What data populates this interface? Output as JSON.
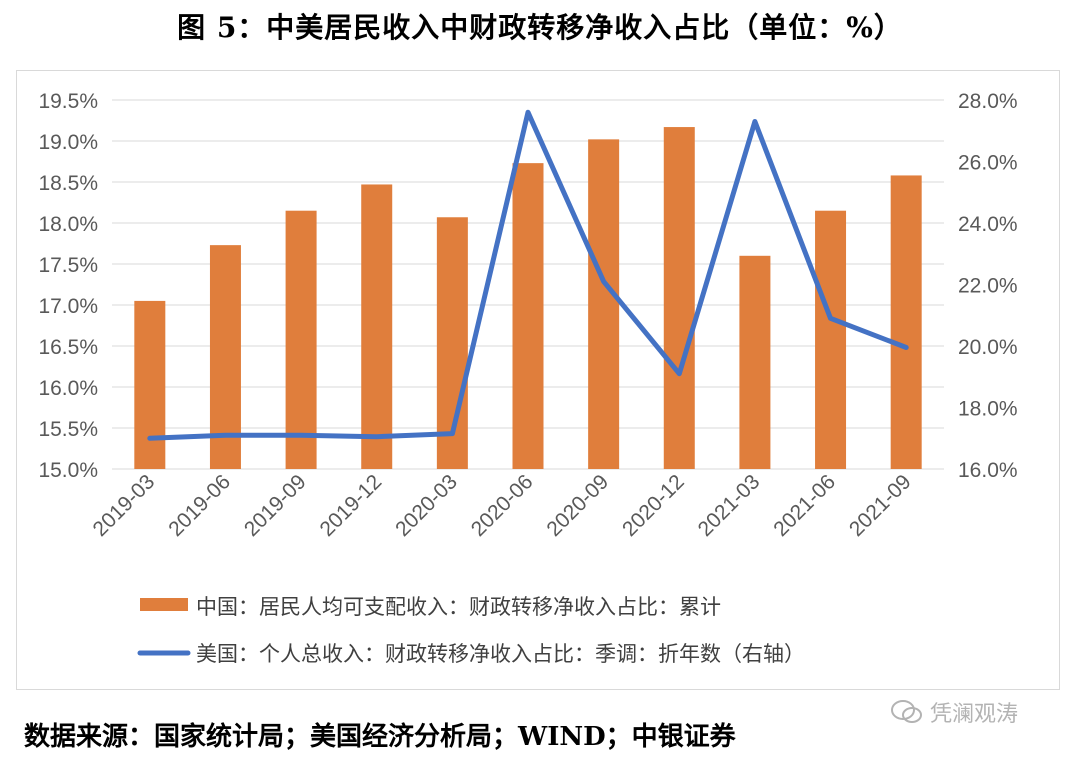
{
  "title": "图 5：中美居民收入中财政转移净收入占比（单位：%）",
  "source": "数据来源：国家统计局；美国经济分析局；WIND；中银证券",
  "watermark": "凭澜观涛",
  "colors": {
    "bar": "#E07E3C",
    "line": "#4472C4",
    "grid": "#d9d9d9",
    "axis_text": "#595959"
  },
  "chart_data": {
    "type": "bar+line",
    "categories": [
      "2019-03",
      "2019-06",
      "2019-09",
      "2019-12",
      "2020-03",
      "2020-06",
      "2020-09",
      "2020-12",
      "2021-03",
      "2021-06",
      "2021-09"
    ],
    "left_axis": {
      "min": 15.0,
      "max": 19.5,
      "step": 0.5,
      "ticks": [
        "15.0%",
        "15.5%",
        "16.0%",
        "16.5%",
        "17.0%",
        "17.5%",
        "18.0%",
        "18.5%",
        "19.0%",
        "19.5%"
      ]
    },
    "right_axis": {
      "min": 16.0,
      "max": 28.0,
      "step": 2.0,
      "ticks": [
        "16.0%",
        "18.0%",
        "20.0%",
        "22.0%",
        "24.0%",
        "26.0%",
        "28.0%"
      ]
    },
    "series": [
      {
        "name": "中国：居民人均可支配收入：财政转移净收入占比：累计",
        "type": "bar",
        "axis": "left",
        "values": [
          17.05,
          17.73,
          18.15,
          18.47,
          18.07,
          18.73,
          19.02,
          19.17,
          17.6,
          18.15,
          18.58
        ]
      },
      {
        "name": "美国：个人总收入：财政转移净收入占比：季调：折年数（右轴）",
        "type": "line",
        "axis": "right",
        "values": [
          17.0,
          17.1,
          17.1,
          17.05,
          17.15,
          27.6,
          22.1,
          19.1,
          27.3,
          20.9,
          19.95
        ]
      }
    ],
    "grid": "horizontal",
    "legend": "bottom"
  }
}
